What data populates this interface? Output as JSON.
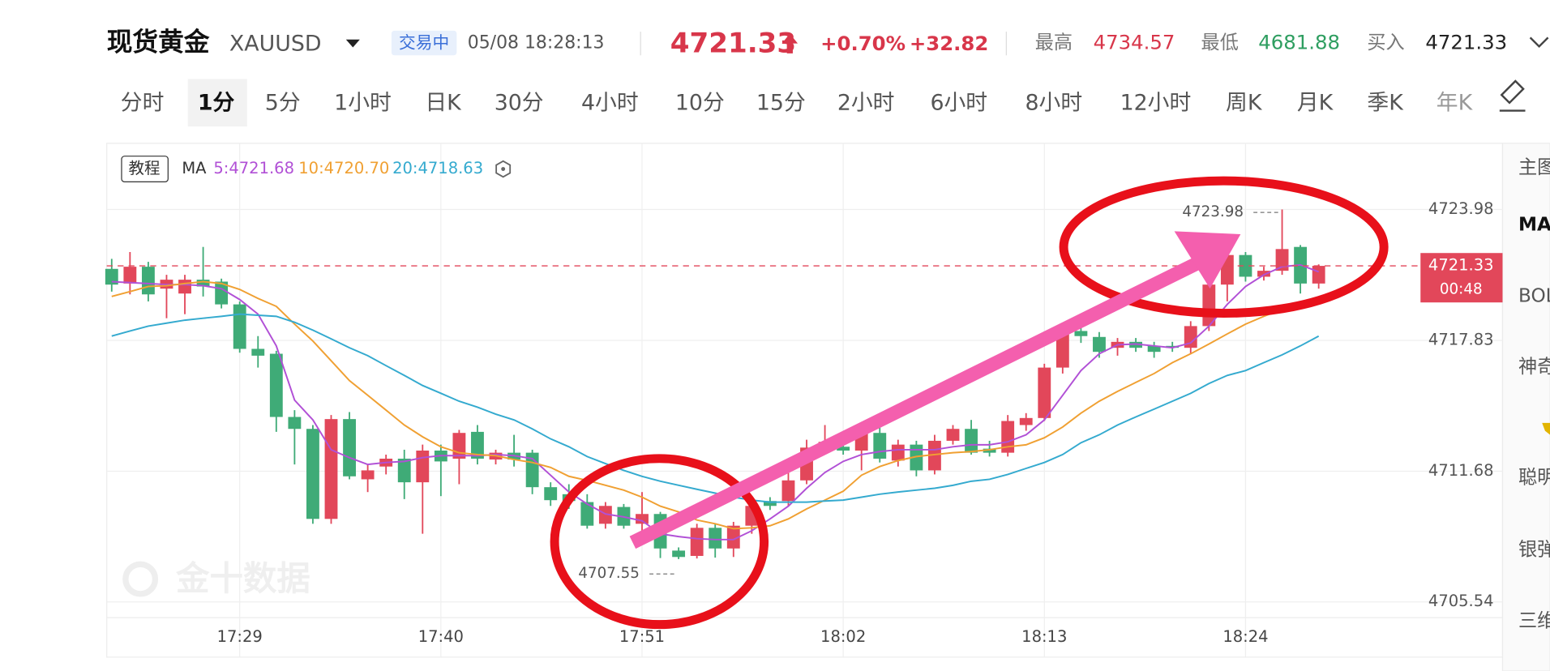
{
  "header": {
    "name": "现货黄金",
    "symbol": "XAUUSD",
    "status": "交易中",
    "datetime": "05/08 18:28:13",
    "price": "4721.33",
    "change_pct": "+0.70%",
    "change": "+32.82",
    "high_label": "最高",
    "high": "4734.57",
    "low_label": "最低",
    "low": "4681.88",
    "bid_label": "买入",
    "bid": "4721.33"
  },
  "tabs": {
    "items": [
      "分时",
      "1分",
      "5分",
      "1小时",
      "日K",
      "30分",
      "4小时",
      "10分",
      "15分",
      "2小时",
      "6小时",
      "8小时",
      "12小时",
      "周K",
      "月K",
      "季K",
      "年K"
    ],
    "active_index": 1
  },
  "sidebar": [
    "主图",
    "MA",
    "BOL",
    "神奇",
    "聪明",
    "银弹",
    "三维"
  ],
  "legend": {
    "tutorial": "教程",
    "ma": "MA"
  },
  "watermark": "金十数据",
  "chart_data": {
    "type": "candlestick",
    "categories": [
      null,
      null,
      null,
      null,
      null,
      null,
      null,
      "17:29",
      null,
      null,
      null,
      null,
      null,
      null,
      null,
      null,
      null,
      null,
      "17:40",
      null,
      null,
      null,
      null,
      null,
      null,
      null,
      null,
      null,
      null,
      "17:51",
      null,
      null,
      null,
      null,
      null,
      null,
      null,
      null,
      null,
      null,
      "18:02",
      null,
      null,
      null,
      null,
      null,
      null,
      null,
      null,
      null,
      null,
      "18:13",
      null,
      null,
      null,
      null,
      null,
      null,
      null,
      null,
      null,
      null,
      "18:24",
      null,
      null,
      null,
      null
    ],
    "ohlc": [
      [
        4721.19,
        4721.66,
        4720.12,
        4720.45
      ],
      [
        4720.5,
        4721.98,
        4719.99,
        4721.29
      ],
      [
        4721.29,
        4721.52,
        4719.66,
        4719.99
      ],
      [
        4720.26,
        4720.91,
        4718.87,
        4720.68
      ],
      [
        4720.03,
        4720.91,
        4719.06,
        4720.68
      ],
      [
        4720.68,
        4722.22,
        4719.89,
        4720.36
      ],
      [
        4720.59,
        4720.73,
        4719.33,
        4719.52
      ],
      [
        4719.52,
        4719.66,
        4717.25,
        4717.43
      ],
      [
        4717.43,
        4718.03,
        4716.55,
        4717.11
      ],
      [
        4717.2,
        4717.34,
        4713.53,
        4714.23
      ],
      [
        4714.23,
        4714.55,
        4712.0,
        4713.67
      ],
      [
        4713.67,
        4713.85,
        4709.21,
        4709.44
      ],
      [
        4709.44,
        4714.32,
        4709.21,
        4714.13
      ],
      [
        4714.13,
        4714.46,
        4711.3,
        4711.44
      ],
      [
        4711.3,
        4712.0,
        4710.7,
        4711.72
      ],
      [
        4711.9,
        4712.46,
        4711.53,
        4712.27
      ],
      [
        4712.27,
        4712.69,
        4710.37,
        4711.16
      ],
      [
        4711.16,
        4712.93,
        4708.74,
        4712.65
      ],
      [
        4712.65,
        4712.93,
        4710.51,
        4712.14
      ],
      [
        4712.27,
        4713.62,
        4711.07,
        4713.48
      ],
      [
        4713.53,
        4713.85,
        4712.0,
        4712.27
      ],
      [
        4712.23,
        4712.69,
        4712.0,
        4712.55
      ],
      [
        4712.55,
        4713.39,
        4711.9,
        4712.23
      ],
      [
        4712.55,
        4712.69,
        4710.6,
        4710.93
      ],
      [
        4710.93,
        4711.16,
        4710.05,
        4710.32
      ],
      [
        4710.6,
        4711.07,
        4709.91,
        4710.28
      ],
      [
        4710.23,
        4710.6,
        4708.98,
        4709.12
      ],
      [
        4709.21,
        4710.23,
        4708.98,
        4710.05
      ],
      [
        4710.0,
        4710.14,
        4708.98,
        4709.12
      ],
      [
        4709.21,
        4710.7,
        4708.74,
        4709.67
      ],
      [
        4709.67,
        4709.77,
        4707.6,
        4708.05
      ],
      [
        4707.95,
        4708.1,
        4707.55,
        4707.65
      ],
      [
        4707.7,
        4709.21,
        4707.58,
        4709.02
      ],
      [
        4709.02,
        4709.21,
        4707.62,
        4708.05
      ],
      [
        4708.05,
        4709.3,
        4707.65,
        4709.12
      ],
      [
        4709.12,
        4710.23,
        4708.74,
        4710.05
      ],
      [
        4710.28,
        4710.46,
        4709.86,
        4710.05
      ],
      [
        4710.28,
        4711.62,
        4710.05,
        4711.25
      ],
      [
        4711.25,
        4713.16,
        4711.07,
        4712.79
      ],
      [
        4712.79,
        4713.85,
        4712.55,
        4713.06
      ],
      [
        4712.83,
        4713.11,
        4712.46,
        4712.65
      ],
      [
        4712.65,
        4713.72,
        4711.72,
        4713.48
      ],
      [
        4713.48,
        4713.85,
        4712.09,
        4712.27
      ],
      [
        4712.18,
        4713.16,
        4711.9,
        4712.93
      ],
      [
        4712.93,
        4713.11,
        4711.44,
        4711.72
      ],
      [
        4711.72,
        4713.39,
        4711.53,
        4713.11
      ],
      [
        4713.11,
        4713.85,
        4712.93,
        4713.67
      ],
      [
        4713.67,
        4714.09,
        4712.46,
        4712.55
      ],
      [
        4712.74,
        4713.11,
        4712.37,
        4712.55
      ],
      [
        4712.55,
        4714.32,
        4712.37,
        4714.04
      ],
      [
        4713.85,
        4714.41,
        4713.58,
        4714.18
      ],
      [
        4714.18,
        4716.73,
        4714.04,
        4716.55
      ],
      [
        4716.55,
        4718.5,
        4716.27,
        4718.27
      ],
      [
        4718.27,
        4718.59,
        4717.71,
        4718.03
      ],
      [
        4717.99,
        4718.22,
        4717.01,
        4717.29
      ],
      [
        4717.48,
        4717.94,
        4717.11,
        4717.76
      ],
      [
        4717.76,
        4717.94,
        4717.29,
        4717.48
      ],
      [
        4717.57,
        4717.76,
        4717.01,
        4717.29
      ],
      [
        4717.57,
        4717.76,
        4717.29,
        4717.48
      ],
      [
        4717.48,
        4718.73,
        4717.2,
        4718.5
      ],
      [
        4718.5,
        4720.64,
        4718.27,
        4720.45
      ],
      [
        4720.45,
        4722.12,
        4719.66,
        4721.84
      ],
      [
        4721.84,
        4721.98,
        4720.59,
        4720.82
      ],
      [
        4720.82,
        4721.29,
        4720.64,
        4721.1
      ],
      [
        4721.1,
        4723.98,
        4720.91,
        4722.12
      ],
      [
        4722.22,
        4722.31,
        4720.03,
        4720.5
      ],
      [
        4720.5,
        4721.4,
        4720.26,
        4721.33
      ]
    ],
    "up_color": "#e2475a",
    "down_color": "#3fab77",
    "ma_lines": [
      {
        "name": "5:4721.68",
        "color": "#b150d6",
        "values": [
          4720.59,
          4720.54,
          4720.5,
          4720.45,
          4720.45,
          4720.4,
          4720.26,
          4719.75,
          4719.06,
          4717.57,
          4715.02,
          4714.09,
          4712.69,
          4712.32,
          4712.0,
          4712.09,
          4712.14,
          4712.32,
          4712.41,
          4712.41,
          4712.41,
          4712.46,
          4712.41,
          4712.27,
          4711.49,
          4710.7,
          4710.14,
          4709.67,
          4709.53,
          4709.35,
          4708.74,
          4708.61,
          4708.51,
          4708.47,
          4708.47,
          4708.88,
          4709.44,
          4710.04,
          4710.88,
          4711.62,
          4712.14,
          4712.46,
          4712.6,
          4712.69,
          4712.69,
          4712.69,
          4712.83,
          4712.92,
          4712.92,
          4713.06,
          4713.39,
          4714.09,
          4715.25,
          4716.41,
          4717.2,
          4717.62,
          4717.66,
          4717.57,
          4717.48,
          4717.71,
          4718.5,
          4719.52,
          4720.36,
          4720.91,
          4721.29,
          4721.38,
          4721.05
        ]
      },
      {
        "name": "10:4720.70",
        "color": "#f0a032",
        "values": [
          4719.89,
          4720.12,
          4720.36,
          4720.4,
          4720.5,
          4720.59,
          4720.5,
          4720.22,
          4719.8,
          4719.43,
          4718.59,
          4717.8,
          4716.87,
          4715.94,
          4715.25,
          4714.55,
          4713.85,
          4713.3,
          4712.83,
          4712.55,
          4712.46,
          4712.41,
          4712.23,
          4712.09,
          4711.86,
          4711.44,
          4711.25,
          4711.02,
          4710.79,
          4710.46,
          4710.04,
          4709.77,
          4709.39,
          4709.21,
          4708.98,
          4709.02,
          4709.12,
          4709.44,
          4709.91,
          4710.32,
          4710.74,
          4711.49,
          4711.9,
          4712.18,
          4712.37,
          4712.46,
          4712.55,
          4712.6,
          4712.69,
          4712.83,
          4712.92,
          4713.25,
          4713.76,
          4714.41,
          4714.97,
          4715.43,
          4715.85,
          4716.27,
          4716.78,
          4717.2,
          4717.66,
          4718.13,
          4718.59,
          4718.96,
          4719.29,
          4719.52,
          4719.71
        ]
      },
      {
        "name": "20:4718.63",
        "color": "#34aacf",
        "values": [
          4718.03,
          4718.27,
          4718.5,
          4718.64,
          4718.78,
          4718.87,
          4718.96,
          4719.06,
          4719.01,
          4718.96,
          4718.68,
          4718.31,
          4717.9,
          4717.48,
          4717.11,
          4716.64,
          4716.18,
          4715.71,
          4715.34,
          4714.97,
          4714.69,
          4714.36,
          4714.09,
          4713.67,
          4713.2,
          4712.83,
          4712.37,
          4712.04,
          4711.72,
          4711.44,
          4711.21,
          4711.02,
          4710.83,
          4710.65,
          4710.46,
          4710.32,
          4710.23,
          4710.23,
          4710.23,
          4710.28,
          4710.32,
          4710.46,
          4710.6,
          4710.7,
          4710.79,
          4710.88,
          4711.02,
          4711.21,
          4711.3,
          4711.53,
          4711.81,
          4712.09,
          4712.46,
          4713.02,
          4713.39,
          4713.85,
          4714.23,
          4714.6,
          4714.97,
          4715.34,
          4715.8,
          4716.18,
          4716.41,
          4716.78,
          4717.15,
          4717.57,
          4718.03
        ]
      }
    ],
    "ylim": [
      4704.8,
      4727.09
    ],
    "yticks": [
      4705.54,
      4711.68,
      4717.83,
      4723.98
    ],
    "grid": true,
    "last_price": 4721.33,
    "countdown": "00:48",
    "high_marker": 4723.98,
    "low_marker": 4707.55
  }
}
